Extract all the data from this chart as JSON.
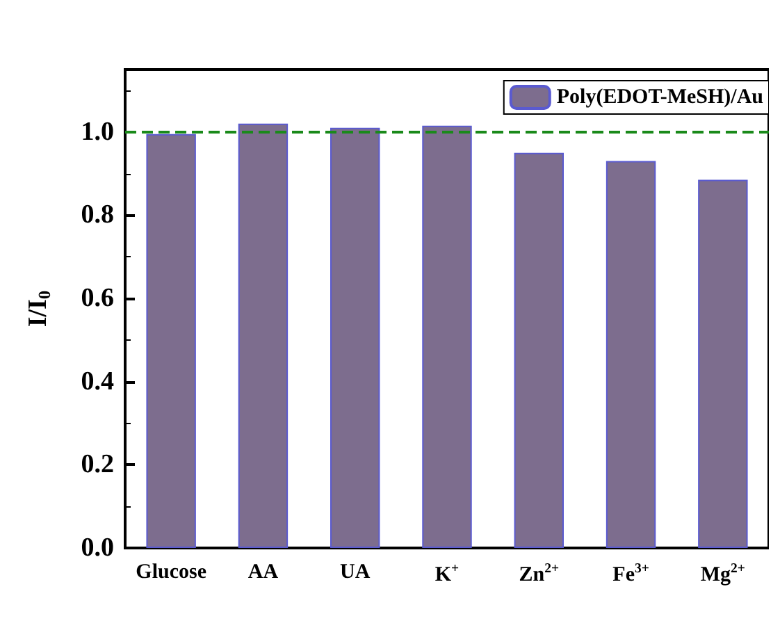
{
  "chart_data": {
    "type": "bar",
    "ylabel": "I/I$_{0}$",
    "categories": [
      "Glucose",
      "AA",
      "UA",
      "K$^{+}$",
      "Zn$^{2+}$",
      "Fe$^{3+}$",
      "Mg$^{2+}$"
    ],
    "series": [
      {
        "name": "Poly(EDOT-MeSH)/Au",
        "color": "#7d6d8e",
        "values": [
          0.995,
          1.02,
          1.01,
          1.015,
          0.95,
          0.93,
          0.885
        ]
      }
    ],
    "ylim": [
      0,
      1.15
    ],
    "yticks": [
      {
        "value": 0,
        "label": "0.0"
      },
      0.2,
      0.4,
      0.6,
      0.8,
      {
        "value": 1,
        "label": "1.0"
      }
    ],
    "ref_lines": [
      {
        "axis": "y",
        "value": 1,
        "color": "#1a8a1a",
        "line_style": "dashed"
      }
    ],
    "grid": false,
    "legend": "top right"
  }
}
